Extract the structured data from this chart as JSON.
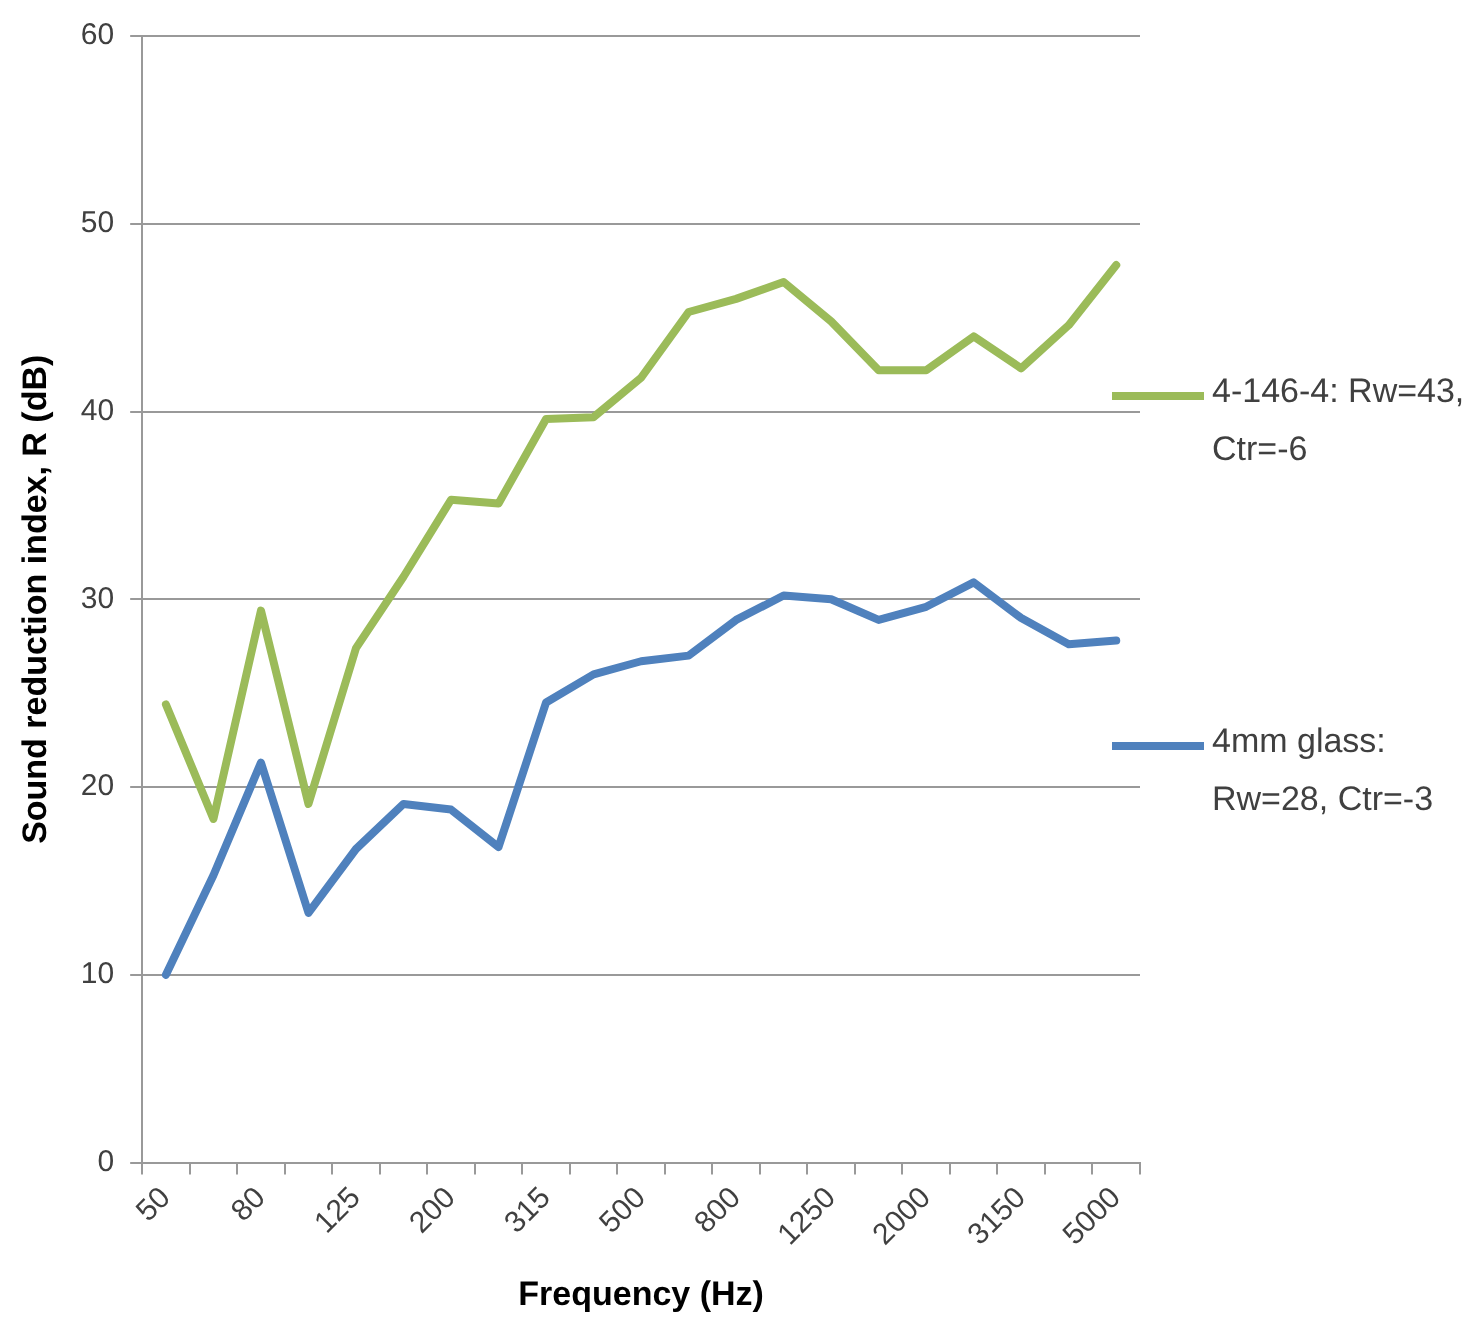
{
  "chart_data": {
    "type": "line",
    "xlabel": "Frequency (Hz)",
    "ylabel": "Sound reduction index, R (dB)",
    "categories": [
      "50",
      null,
      "80",
      null,
      "125",
      null,
      "200",
      null,
      "315",
      null,
      "500",
      null,
      "800",
      null,
      "1250",
      null,
      "2000",
      null,
      "3150",
      null,
      "5000"
    ],
    "series": [
      {
        "name": "4-146-4: Rw=43, Ctr=-6",
        "color": "#9bbb59",
        "values": [
          24.4,
          18.3,
          29.4,
          19.1,
          27.4,
          31.2,
          35.3,
          35.1,
          39.6,
          39.7,
          41.8,
          45.3,
          46.0,
          46.9,
          44.8,
          42.2,
          42.2,
          44.0,
          42.3,
          44.6,
          47.8
        ]
      },
      {
        "name": "4mm glass: Rw=28, Ctr=-3",
        "color": "#4f81bd",
        "values": [
          10.0,
          15.3,
          21.3,
          13.3,
          16.7,
          19.1,
          18.8,
          16.8,
          24.5,
          26.0,
          26.7,
          27.0,
          28.9,
          30.2,
          30.0,
          28.9,
          29.6,
          30.9,
          29.0,
          27.6,
          27.8
        ]
      }
    ],
    "ylim": [
      0,
      60
    ],
    "yticks": [
      0,
      10,
      20,
      30,
      40,
      50,
      60
    ],
    "grid": "y",
    "legend": "right",
    "marker": "none",
    "line_style": "solid"
  }
}
